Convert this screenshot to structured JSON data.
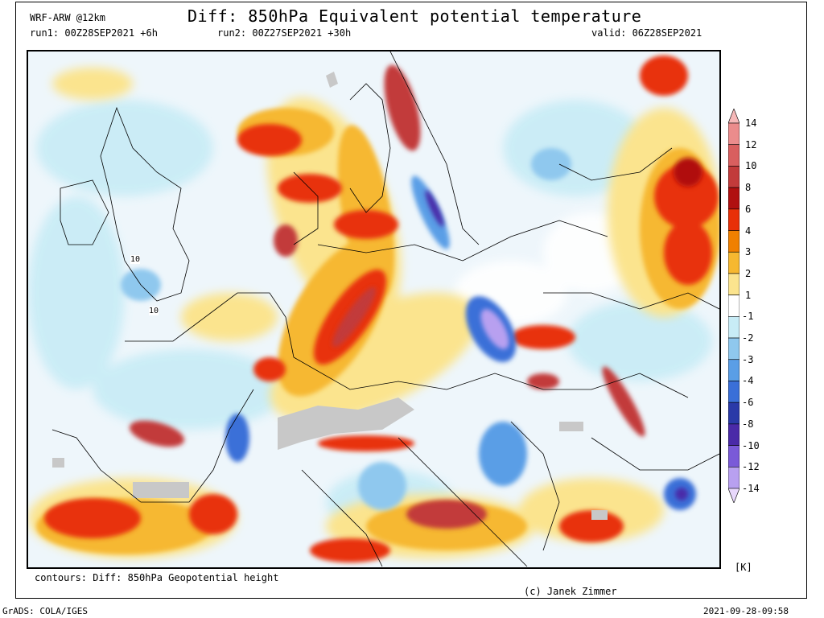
{
  "header": {
    "model": "WRF-ARW @12km",
    "title": "Diff: 850hPa Equivalent potential temperature",
    "run1": "run1: 00Z28SEP2021 +6h",
    "run2": "run2: 00Z27SEP2021 +30h",
    "valid": "valid: 06Z28SEP2021"
  },
  "map": {
    "contour_labels": [
      "10",
      "10"
    ]
  },
  "colorbar": {
    "unit": "[K]",
    "levels": [
      "14",
      "12",
      "10",
      "8",
      "6",
      "4",
      "3",
      "2",
      "1",
      "-1",
      "-2",
      "-3",
      "-4",
      "-6",
      "-8",
      "-10",
      "-12",
      "-14"
    ],
    "colors": [
      "#f6b8b8",
      "#eb8c8c",
      "#d95f5f",
      "#c23b3b",
      "#b01010",
      "#e83008",
      "#f08000",
      "#f6b830",
      "#fbe48e",
      "#ffffff",
      "#c8ecf6",
      "#8fc8ee",
      "#5a9ee6",
      "#3a6fd8",
      "#2a3aa8",
      "#4a2aa8",
      "#7a5ad8",
      "#b8a0f0",
      "#e8d8fc"
    ]
  },
  "footer": {
    "contours": "contours: Diff: 850hPa Geopotential height",
    "credit": "(c) Janek Zimmer",
    "grads": "GrADS: COLA/IGES",
    "timestamp": "2021-09-28-09:58"
  }
}
